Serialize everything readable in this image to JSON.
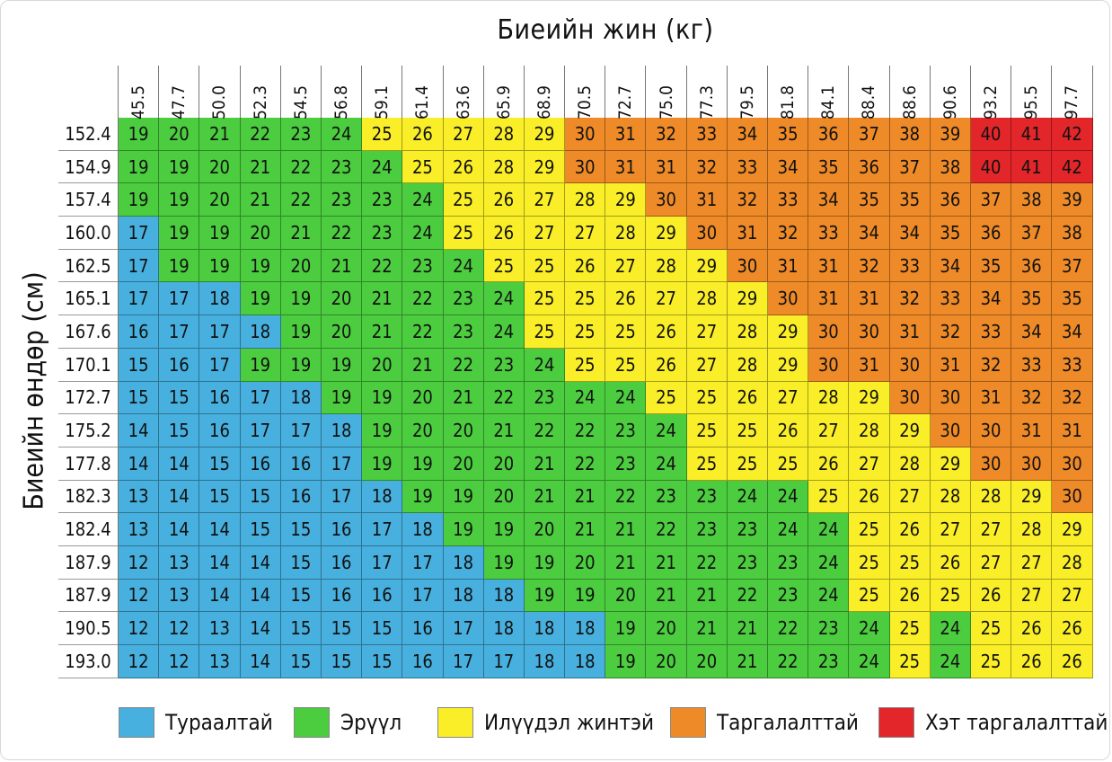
{
  "chart_data": {
    "type": "heatmap",
    "title": "",
    "xlabel": "Биеийн жин (кг)",
    "ylabel": "Биеийн өндөр (см)",
    "x": [
      "45.5",
      "47.7",
      "50.0",
      "52.3",
      "54.5",
      "56.8",
      "59.1",
      "61.4",
      "63.6",
      "65.9",
      "68.9",
      "70.5",
      "72.7",
      "75.0",
      "77.3",
      "79.5",
      "81.8",
      "84.1",
      "88.4",
      "88.6",
      "90.6",
      "93.2",
      "95.5",
      "97.7"
    ],
    "y": [
      "152.4",
      "154.9",
      "157.4",
      "160.0",
      "162.5",
      "165.1",
      "167.6",
      "170.1",
      "172.7",
      "175.2",
      "177.8",
      "182.3",
      "182.4",
      "187.9",
      "187.9",
      "190.5",
      "193.0"
    ],
    "values": [
      [
        19,
        20,
        21,
        22,
        23,
        24,
        25,
        26,
        27,
        28,
        29,
        30,
        31,
        32,
        33,
        34,
        35,
        36,
        37,
        38,
        39,
        40,
        41,
        42
      ],
      [
        19,
        19,
        20,
        21,
        22,
        23,
        24,
        25,
        26,
        28,
        29,
        30,
        31,
        31,
        32,
        33,
        34,
        35,
        36,
        37,
        38,
        40,
        41,
        42
      ],
      [
        19,
        19,
        20,
        21,
        22,
        23,
        23,
        24,
        25,
        26,
        27,
        28,
        29,
        30,
        31,
        32,
        33,
        34,
        35,
        35,
        36,
        37,
        38,
        39
      ],
      [
        17,
        19,
        19,
        20,
        21,
        22,
        23,
        24,
        25,
        26,
        27,
        27,
        28,
        29,
        30,
        31,
        32,
        33,
        34,
        34,
        35,
        36,
        37,
        38
      ],
      [
        17,
        19,
        19,
        19,
        20,
        21,
        22,
        23,
        24,
        25,
        25,
        26,
        27,
        28,
        29,
        30,
        31,
        31,
        32,
        33,
        34,
        35,
        36,
        37
      ],
      [
        17,
        17,
        18,
        19,
        19,
        20,
        21,
        22,
        23,
        24,
        25,
        25,
        26,
        27,
        28,
        29,
        30,
        31,
        31,
        32,
        33,
        34,
        35,
        35
      ],
      [
        16,
        17,
        17,
        18,
        19,
        20,
        21,
        22,
        23,
        24,
        25,
        25,
        25,
        26,
        27,
        28,
        29,
        30,
        30,
        31,
        32,
        33,
        34,
        34
      ],
      [
        15,
        16,
        17,
        19,
        19,
        19,
        20,
        21,
        22,
        23,
        24,
        25,
        25,
        26,
        27,
        28,
        29,
        30,
        31,
        30,
        31,
        32,
        33,
        33
      ],
      [
        15,
        15,
        16,
        17,
        18,
        19,
        19,
        20,
        21,
        22,
        23,
        24,
        24,
        25,
        25,
        26,
        27,
        28,
        29,
        30,
        30,
        31,
        32,
        32
      ],
      [
        14,
        15,
        16,
        17,
        17,
        18,
        19,
        20,
        20,
        21,
        22,
        22,
        23,
        24,
        25,
        25,
        26,
        27,
        28,
        29,
        30,
        30,
        31,
        31
      ],
      [
        14,
        14,
        15,
        16,
        16,
        17,
        19,
        19,
        20,
        20,
        21,
        22,
        23,
        24,
        25,
        25,
        25,
        26,
        27,
        28,
        29,
        30,
        30,
        30
      ],
      [
        13,
        14,
        15,
        15,
        16,
        17,
        18,
        19,
        19,
        20,
        21,
        21,
        22,
        23,
        23,
        24,
        24,
        25,
        26,
        27,
        28,
        28,
        29,
        30
      ],
      [
        13,
        14,
        14,
        15,
        15,
        16,
        17,
        18,
        19,
        19,
        20,
        21,
        21,
        22,
        23,
        23,
        24,
        24,
        25,
        26,
        27,
        27,
        28,
        29
      ],
      [
        12,
        13,
        14,
        14,
        15,
        16,
        17,
        17,
        18,
        19,
        19,
        20,
        21,
        21,
        22,
        23,
        23,
        24,
        25,
        25,
        26,
        27,
        27,
        28
      ],
      [
        12,
        13,
        14,
        14,
        15,
        16,
        16,
        17,
        18,
        18,
        19,
        19,
        20,
        21,
        21,
        22,
        23,
        24,
        25,
        26,
        25,
        26,
        27,
        27
      ],
      [
        12,
        12,
        13,
        14,
        15,
        15,
        15,
        16,
        17,
        18,
        18,
        18,
        19,
        20,
        21,
        21,
        22,
        23,
        24,
        25,
        24,
        25,
        26,
        26
      ],
      [
        12,
        12,
        13,
        14,
        15,
        15,
        15,
        16,
        17,
        17,
        18,
        18,
        19,
        20,
        20,
        21,
        22,
        23,
        24,
        25,
        24,
        25,
        26,
        26
      ]
    ],
    "categories": [
      {
        "name": "Тураалтай",
        "color": "#48b0de"
      },
      {
        "name": "Эрүүл",
        "color": "#4ccc3f"
      },
      {
        "name": "Илүүдэл жинтэй",
        "color": "#f9ee27"
      },
      {
        "name": "Таргалалттай",
        "color": "#ee8a28"
      },
      {
        "name": "Хэт таргалалттай",
        "color": "#e2262a"
      }
    ],
    "legend": "bottom"
  }
}
